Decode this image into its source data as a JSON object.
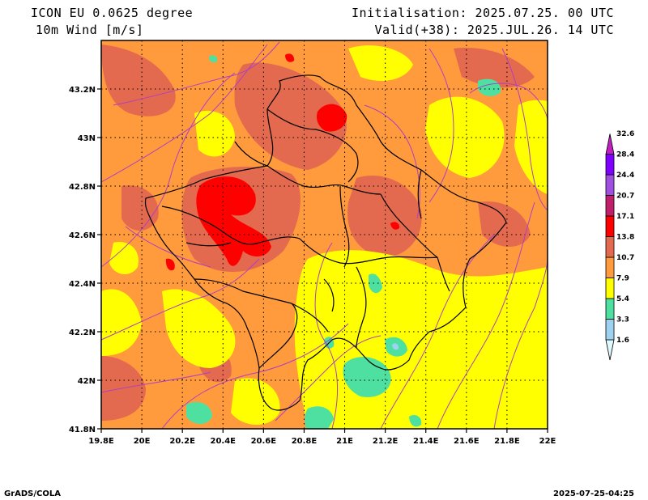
{
  "header": {
    "title_line1": "ICON EU 0.0625 degree",
    "title_line2": "10m Wind [m/s]",
    "init_line": "Initialisation: 2025.07.25. 00 UTC",
    "valid_line": "Valid(+38): 2025.JUL.26. 14 UTC"
  },
  "footer": {
    "left": "GrADS/COLA",
    "right": "2025-07-25-04:25"
  },
  "map": {
    "lon_ticks": [
      "19.8E",
      "20E",
      "20.2E",
      "20.4E",
      "20.6E",
      "20.8E",
      "21E",
      "21.2E",
      "21.4E",
      "21.6E",
      "21.8E",
      "22E"
    ],
    "lat_ticks": [
      "43.2N",
      "43N",
      "42.8N",
      "42.6N",
      "42.4N",
      "42.2N",
      "42N",
      "41.8N"
    ],
    "base_color": "#ff9a3d"
  },
  "colorbar": {
    "labels": [
      "1.6",
      "3.3",
      "5.4",
      "7.9",
      "10.7",
      "13.8",
      "17.1",
      "20.7",
      "24.4",
      "28.4",
      "32.6"
    ],
    "colors": [
      "#dffaff",
      "#9ed2f0",
      "#4de0a0",
      "#ffff00",
      "#ff9a3d",
      "#e36a4f",
      "#ff0000",
      "#c0206a",
      "#a050e0",
      "#8000ff",
      "#c020c0"
    ]
  }
}
